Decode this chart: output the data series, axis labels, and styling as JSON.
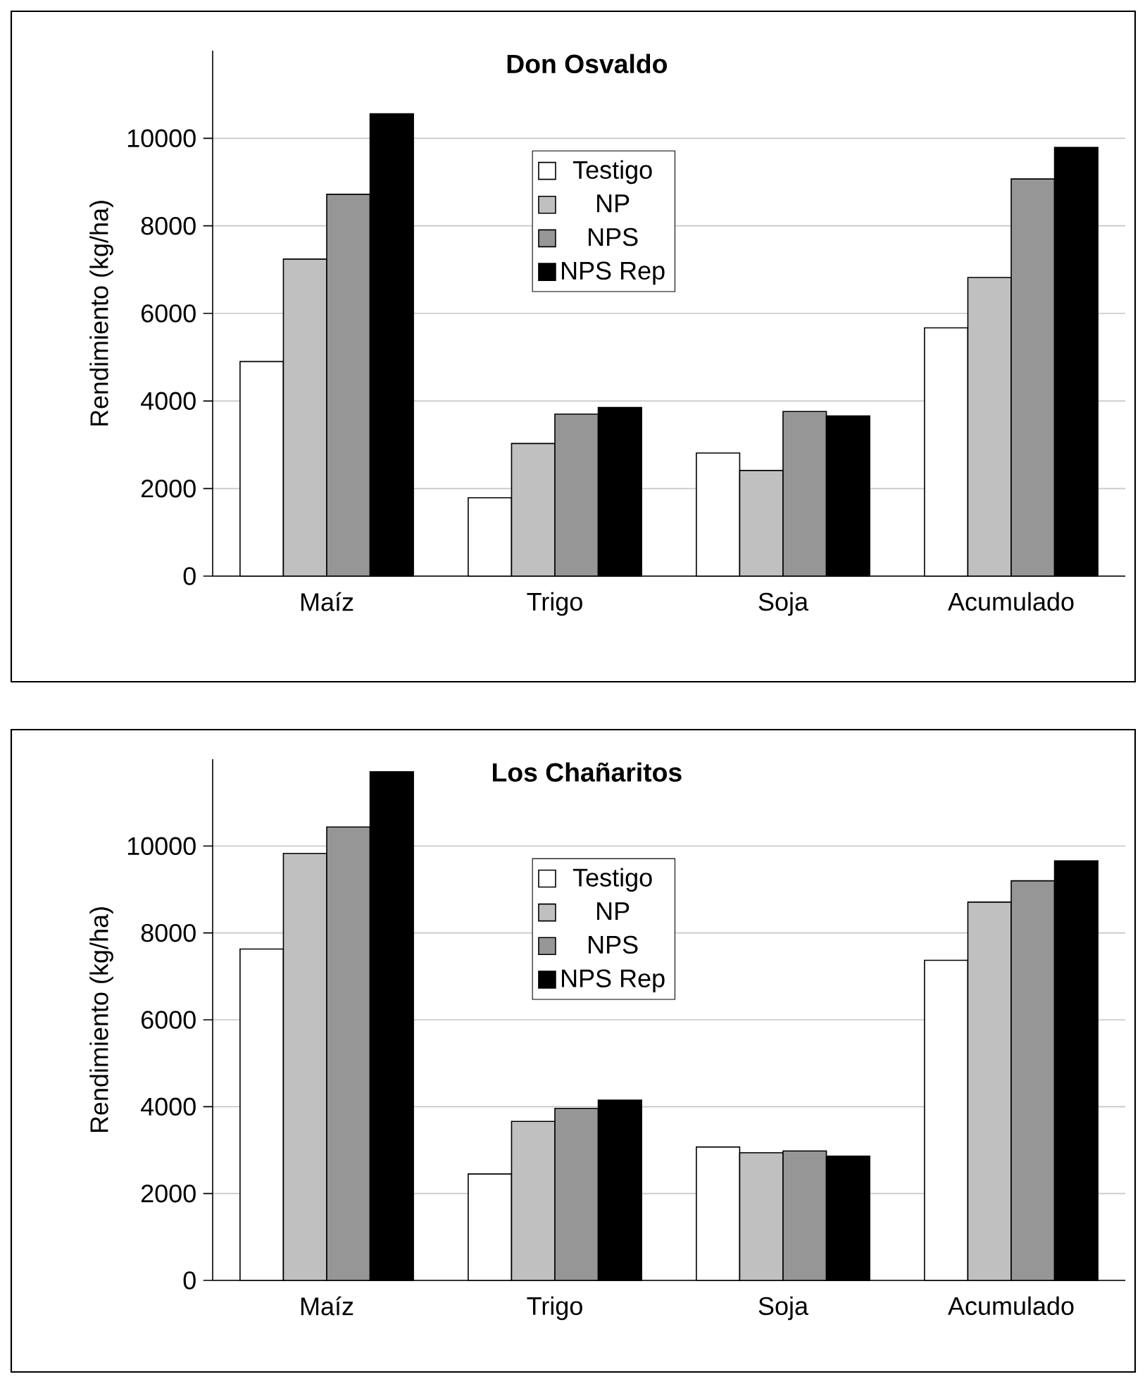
{
  "chart_data": [
    {
      "type": "bar",
      "title": "Don Osvaldo",
      "ylabel": "Rendimiento (kg/ha)",
      "categories": [
        "Maíz",
        "Trigo",
        "Soja",
        "Acumulado"
      ],
      "ylim": [
        0,
        12000
      ],
      "yticks": [
        0,
        2000,
        4000,
        6000,
        8000,
        10000
      ],
      "grid": "y",
      "legend": "top",
      "series": [
        {
          "name": "Testigo",
          "color": "#ffffff",
          "values": [
            4900,
            1790,
            2810,
            5670
          ]
        },
        {
          "name": "NP",
          "color": "#c0c0c0",
          "values": [
            7240,
            3030,
            2410,
            6820
          ]
        },
        {
          "name": "NPS",
          "color": "#969696",
          "values": [
            8720,
            3700,
            3760,
            9070
          ]
        },
        {
          "name": "NPS Rep",
          "color": "#000000",
          "values": [
            10560,
            3850,
            3660,
            9790
          ]
        }
      ]
    },
    {
      "type": "bar",
      "title": "Los Chañaritos",
      "ylabel": "Rendimiento (kg/ha)",
      "categories": [
        "Maíz",
        "Trigo",
        "Soja",
        "Acumulado"
      ],
      "ylim": [
        0,
        12000
      ],
      "yticks": [
        0,
        2000,
        4000,
        6000,
        8000,
        10000
      ],
      "grid": "y",
      "legend": "top",
      "series": [
        {
          "name": "Testigo",
          "color": "#ffffff",
          "values": [
            7630,
            2450,
            3070,
            7370
          ]
        },
        {
          "name": "NP",
          "color": "#c0c0c0",
          "values": [
            9830,
            3660,
            2940,
            8710
          ]
        },
        {
          "name": "NPS",
          "color": "#969696",
          "values": [
            10440,
            3960,
            2980,
            9200
          ]
        },
        {
          "name": "NPS Rep",
          "color": "#000000",
          "values": [
            11710,
            4150,
            2860,
            9660
          ]
        }
      ]
    }
  ]
}
